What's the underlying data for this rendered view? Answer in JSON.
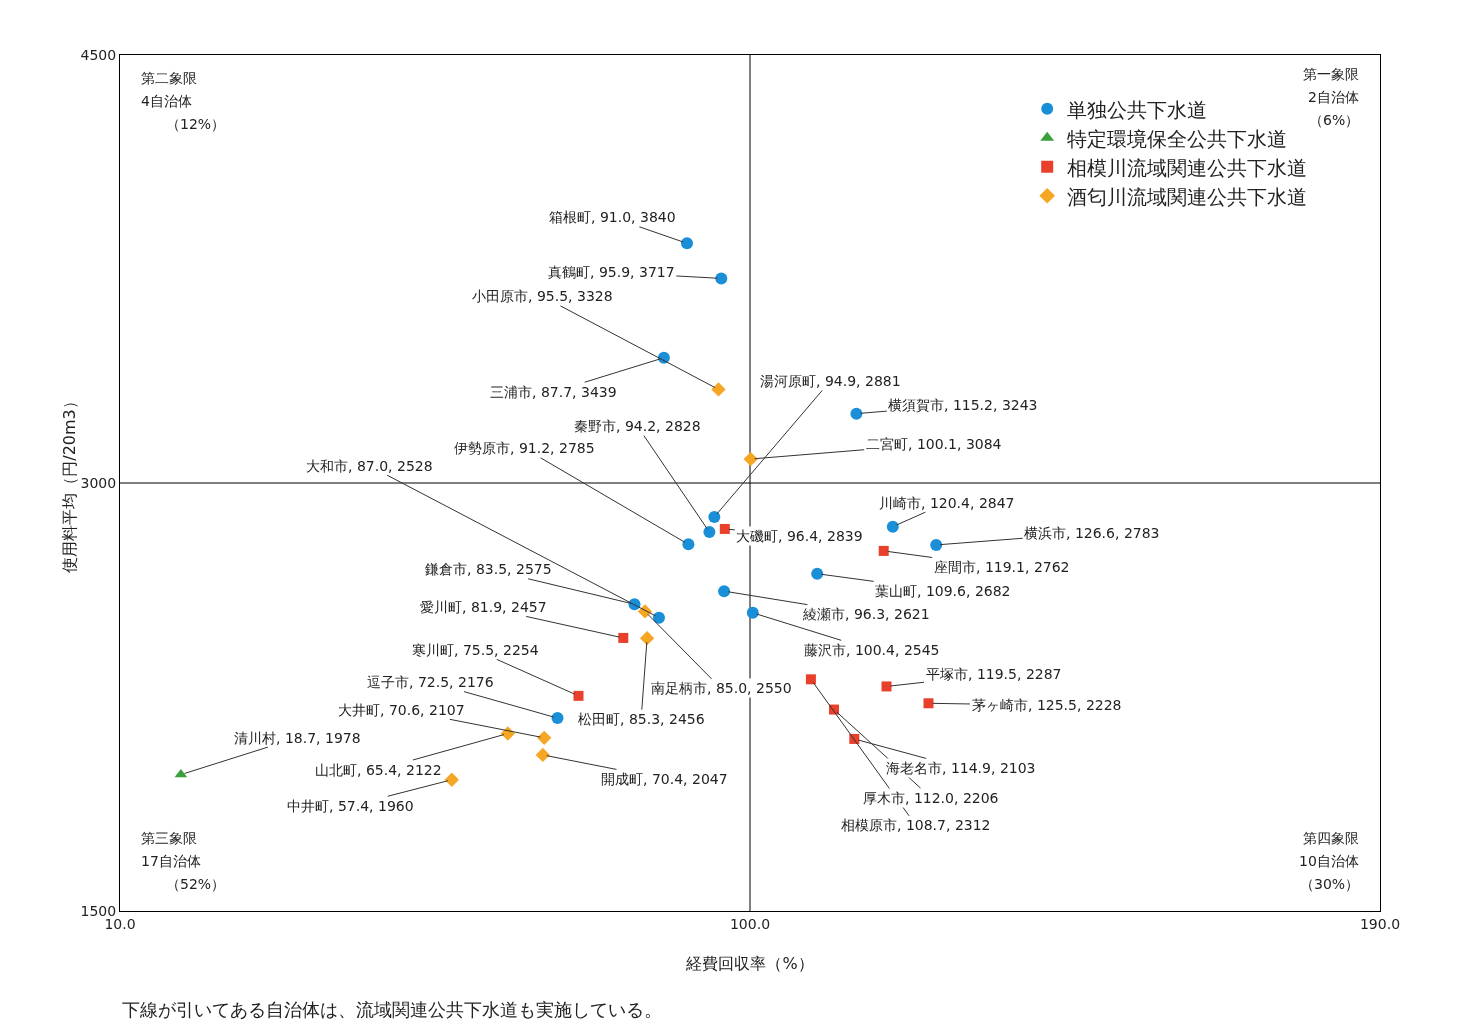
{
  "chart_data": {
    "type": "scatter",
    "xlabel": "経費回収率（%）",
    "ylabel": "使用料平均（円/20m3）",
    "xlim": [
      10,
      190
    ],
    "xticks": [
      {
        "value": 10,
        "label": "10.0"
      },
      {
        "value": 100,
        "label": "100.0"
      },
      {
        "value": 190,
        "label": "190.0"
      }
    ],
    "ylim": [
      1500,
      4500
    ],
    "yticks": [
      1500,
      3000,
      4500
    ],
    "grid": false,
    "legend": "top right",
    "ref_lines": [
      {
        "axis": "x",
        "value": 100,
        "color": "#000000"
      },
      {
        "axis": "y",
        "value": 3000,
        "color": "#000000"
      }
    ],
    "annotations": [
      "第二象限",
      "4自治体",
      "（12%）",
      "第一象限",
      "2自治体",
      "（6%）",
      "第三象限",
      "17自治体",
      "（52%）",
      "第四象限",
      "10自治体",
      "（30%）",
      "下線が引いてある自治体は、流域関連公共下水道も実施している。"
    ],
    "series": [
      {
        "name": "単独公共下水道",
        "color": "#1a8fd8",
        "marker": "circle",
        "x": [
          91.0,
          95.9,
          87.7,
          115.2,
          94.9,
          94.2,
          91.2,
          120.4,
          126.6,
          109.6,
          96.3,
          83.5,
          87.0,
          100.4,
          72.5
        ],
        "values": [
          3840,
          3717,
          3439,
          3243,
          2881,
          2828,
          2785,
          2847,
          2783,
          2682,
          2621,
          2575,
          2528,
          2545,
          2176
        ],
        "value_labels": [
          "箱根町, 91.0, 3840",
          "真鶴町, 95.9, 3717",
          "三浦市, 87.7, 3439",
          "横須賀市, 115.2, 3243",
          "湯河原町, 94.9, 2881",
          "秦野市, 94.2, 2828",
          "伊勢原市, 91.2, 2785",
          "川崎市, 120.4, 2847",
          "横浜市, 126.6, 2783",
          "葉山町, 109.6, 2682",
          "綾瀬市, 96.3, 2621",
          "鎌倉市, 83.5, 2575",
          "大和市, 87.0, 2528",
          "藤沢市, 100.4, 2545",
          "逗子市, 72.5, 2176"
        ]
      },
      {
        "name": "特定環境保全公共下水道",
        "color": "#3aa13a",
        "marker": "triangle",
        "x": [
          18.7
        ],
        "values": [
          1978
        ],
        "value_labels": [
          "清川村, 18.7, 1978"
        ]
      },
      {
        "name": "相模川流域関連公共下水道",
        "color": "#e8402a",
        "marker": "square",
        "x": [
          96.4,
          119.1,
          81.9,
          75.5,
          108.7,
          119.5,
          125.5,
          112.0,
          114.9
        ],
        "values": [
          2839,
          2762,
          2457,
          2254,
          2312,
          2287,
          2228,
          2206,
          2103
        ],
        "value_labels": [
          "大磯町, 96.4, 2839",
          "座間市, 119.1, 2762",
          "愛川町, 81.9, 2457",
          "寒川町, 75.5, 2254",
          "相模原市, 108.7, 2312",
          "平塚市, 119.5, 2287",
          "茅ヶ崎市, 125.5, 2228",
          "厚木市, 112.0, 2206",
          "海老名市, 114.9, 2103"
        ]
      },
      {
        "name": "酒匂川流域関連公共下水道",
        "color": "#f5a623",
        "marker": "diamond",
        "x": [
          95.5,
          100.1,
          85.0,
          85.3,
          70.6,
          65.4,
          70.4,
          57.4
        ],
        "values": [
          3328,
          3084,
          2550,
          2456,
          2107,
          2122,
          2047,
          1960
        ],
        "value_labels": [
          "小田原市, 95.5, 3328",
          "二宮町, 100.1, 3084",
          "南足柄市, 85.0, 2550",
          "松田町, 85.3, 2456",
          "大井町, 70.6, 2107",
          "山北町, 65.4, 2122",
          "開成町, 70.4, 2047",
          "中井町, 57.4, 1960"
        ]
      }
    ]
  }
}
